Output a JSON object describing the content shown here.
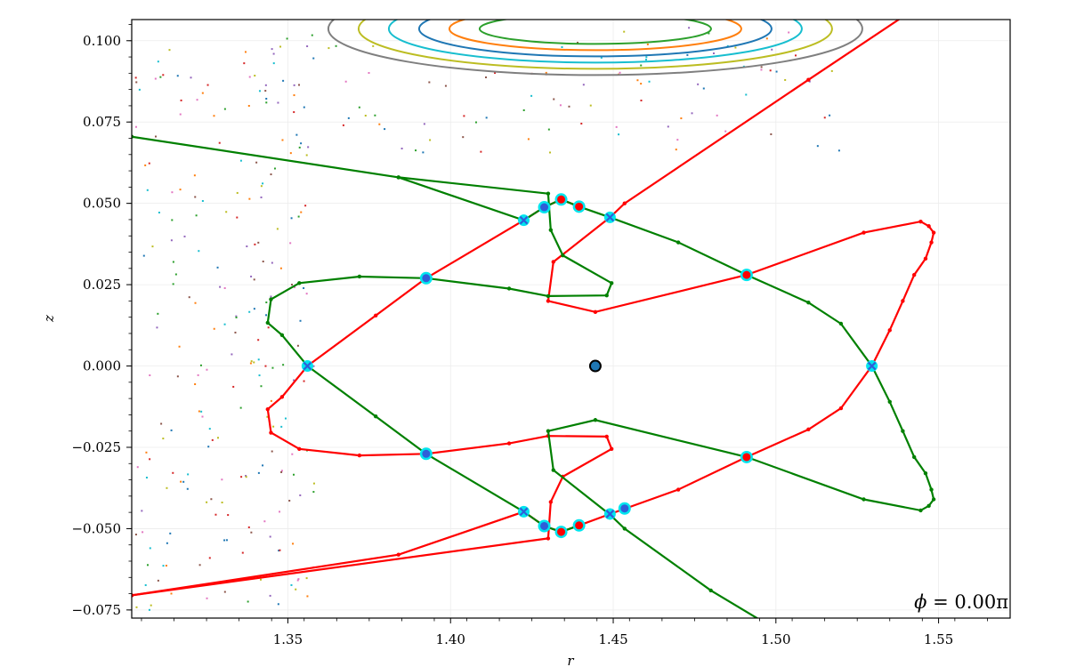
{
  "chart_data": {
    "type": "line",
    "title": "",
    "xlabel": "r",
    "ylabel": "z",
    "xlim": [
      1.302,
      1.572
    ],
    "ylim": [
      -0.0775,
      0.1065
    ],
    "grid": true,
    "legend": "none",
    "x_ticks": [
      "1.35",
      "1.40",
      "1.45",
      "1.50",
      "1.55"
    ],
    "y_ticks": [
      "0.100",
      "0.075",
      "0.050",
      "0.025",
      "0.000",
      "−0.025",
      "−0.050",
      "−0.075"
    ],
    "annotation": {
      "symbol": "ϕ",
      "text": " = 0.00π"
    },
    "colors": {
      "red": "#ff0000",
      "green": "#008000",
      "cyan": "#00e5ee",
      "blue": "#2f5ed8",
      "axis": "#1f77b4"
    },
    "magnetic_axis": {
      "x": 1.4445,
      "y": 0.0
    },
    "series": [
      {
        "color": "red",
        "points": [
          [
            1.302,
            -0.0705
          ],
          [
            1.384,
            -0.058
          ],
          [
            1.4225,
            -0.0448
          ],
          [
            1.4288,
            -0.0492
          ],
          [
            1.434,
            -0.051
          ],
          [
            1.4395,
            -0.049
          ],
          [
            1.449,
            -0.0455
          ],
          [
            1.47,
            -0.038
          ],
          [
            1.491,
            -0.028
          ],
          [
            1.51,
            -0.0195
          ],
          [
            1.52,
            -0.013
          ],
          [
            1.5295,
            0.0
          ],
          [
            1.535,
            0.011
          ],
          [
            1.539,
            0.02
          ],
          [
            1.5425,
            0.028
          ],
          [
            1.546,
            0.033
          ],
          [
            1.5478,
            0.038
          ],
          [
            1.5485,
            0.041
          ],
          [
            1.547,
            0.043
          ],
          [
            1.5445,
            0.0444
          ],
          [
            1.527,
            0.041
          ],
          [
            1.491,
            0.028
          ],
          [
            1.4445,
            0.0166
          ],
          [
            1.43,
            0.02
          ],
          [
            1.4316,
            0.032
          ],
          [
            1.449,
            0.0457
          ],
          [
            1.4535,
            0.05
          ],
          [
            1.51,
            0.088
          ],
          [
            1.54,
            0.108
          ]
        ]
      },
      {
        "color": "red",
        "points": [
          [
            1.3925,
            0.027
          ],
          [
            1.377,
            0.0155
          ],
          [
            1.356,
            0.0
          ],
          [
            1.3482,
            -0.0095
          ],
          [
            1.3438,
            -0.0133
          ],
          [
            1.3448,
            -0.0205
          ],
          [
            1.3535,
            -0.0255
          ],
          [
            1.372,
            -0.0275
          ],
          [
            1.3925,
            -0.027
          ],
          [
            1.418,
            -0.0238
          ],
          [
            1.43,
            -0.0215
          ],
          [
            1.448,
            -0.0217
          ],
          [
            1.4495,
            -0.0255
          ],
          [
            1.4345,
            -0.034
          ],
          [
            1.4308,
            -0.0418
          ],
          [
            1.43,
            -0.053
          ],
          [
            1.302,
            -0.0705
          ]
        ]
      },
      {
        "color": "red",
        "points": [
          [
            1.3925,
            0.027
          ],
          [
            1.4225,
            0.0448
          ],
          [
            1.4288,
            0.0488
          ],
          [
            1.434,
            0.0512
          ],
          [
            1.4395,
            0.049
          ]
        ]
      },
      {
        "color": "green",
        "points": [
          [
            1.302,
            0.0705
          ],
          [
            1.384,
            0.058
          ],
          [
            1.4225,
            0.0448
          ],
          [
            1.4288,
            0.0488
          ],
          [
            1.434,
            0.0512
          ],
          [
            1.4395,
            0.049
          ],
          [
            1.449,
            0.0457
          ],
          [
            1.47,
            0.038
          ],
          [
            1.491,
            0.028
          ],
          [
            1.51,
            0.0195
          ],
          [
            1.52,
            0.013
          ],
          [
            1.5295,
            0.0
          ],
          [
            1.535,
            -0.011
          ],
          [
            1.539,
            -0.02
          ],
          [
            1.5425,
            -0.028
          ],
          [
            1.546,
            -0.033
          ],
          [
            1.5478,
            -0.038
          ],
          [
            1.5485,
            -0.041
          ],
          [
            1.547,
            -0.043
          ],
          [
            1.5445,
            -0.0444
          ],
          [
            1.527,
            -0.041
          ],
          [
            1.491,
            -0.028
          ],
          [
            1.4445,
            -0.0166
          ],
          [
            1.43,
            -0.02
          ],
          [
            1.4316,
            -0.032
          ],
          [
            1.449,
            -0.0457
          ],
          [
            1.4535,
            -0.05
          ],
          [
            1.48,
            -0.069
          ],
          [
            1.495,
            -0.078
          ]
        ]
      },
      {
        "color": "green",
        "points": [
          [
            1.3925,
            -0.027
          ],
          [
            1.377,
            -0.0155
          ],
          [
            1.356,
            0.0
          ],
          [
            1.3482,
            0.0095
          ],
          [
            1.3438,
            0.0133
          ],
          [
            1.3448,
            0.0205
          ],
          [
            1.3535,
            0.0255
          ],
          [
            1.372,
            0.0275
          ],
          [
            1.3925,
            0.027
          ],
          [
            1.418,
            0.0238
          ],
          [
            1.43,
            0.0215
          ],
          [
            1.448,
            0.0217
          ],
          [
            1.4495,
            0.0255
          ],
          [
            1.4345,
            0.034
          ],
          [
            1.4308,
            0.0418
          ],
          [
            1.43,
            0.053
          ],
          [
            1.384,
            0.058
          ]
        ]
      },
      {
        "color": "green",
        "points": [
          [
            1.3925,
            -0.027
          ],
          [
            1.4225,
            -0.0448
          ],
          [
            1.4288,
            -0.0492
          ],
          [
            1.434,
            -0.051
          ],
          [
            1.4395,
            -0.049
          ]
        ]
      }
    ],
    "markers": {
      "cyan_x": [
        [
          1.356,
          0.0
        ],
        [
          1.4225,
          0.0448
        ],
        [
          1.4225,
          -0.0448
        ],
        [
          1.449,
          0.0457
        ],
        [
          1.449,
          -0.0455
        ],
        [
          1.5295,
          0.0
        ]
      ],
      "cyan_circle_red": [
        [
          1.434,
          0.0512
        ],
        [
          1.4395,
          0.049
        ],
        [
          1.491,
          0.028
        ],
        [
          1.491,
          -0.028
        ],
        [
          1.434,
          -0.051
        ],
        [
          1.4395,
          -0.049
        ]
      ],
      "cyan_circle_blue": [
        [
          1.3925,
          0.027
        ],
        [
          1.3925,
          -0.027
        ],
        [
          1.4288,
          0.0488
        ],
        [
          1.4288,
          -0.0492
        ],
        [
          1.4535,
          -0.0438
        ]
      ]
    },
    "background_contours": {
      "center": [
        1.4445,
        0.1
      ],
      "colors": [
        "#7f7f7f",
        "#bcbd22",
        "#17becf",
        "#1f77b4",
        "#ff7f0e",
        "#2ca02c"
      ]
    }
  }
}
